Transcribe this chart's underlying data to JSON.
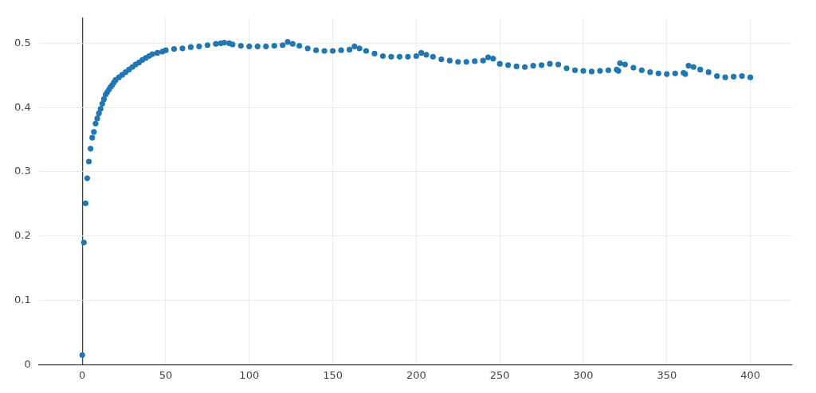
{
  "chart_data": {
    "type": "scatter",
    "marker": "circle",
    "grid": true,
    "legend": false,
    "xlim": [
      -26,
      425
    ],
    "ylim": [
      0,
      0.54
    ],
    "xticks": [
      0,
      50,
      100,
      150,
      200,
      250,
      300,
      350,
      400
    ],
    "yticks": [
      0,
      0.1,
      0.2,
      0.3,
      0.4,
      0.5
    ],
    "series": [
      {
        "color": "#1f77b4",
        "x": [
          0,
          1,
          2,
          3,
          4,
          5,
          6,
          7,
          8,
          9,
          10,
          11,
          12,
          13,
          14,
          15,
          16,
          17,
          18,
          19,
          20,
          22,
          24,
          26,
          28,
          30,
          32,
          34,
          36,
          38,
          40,
          42,
          45,
          48,
          50,
          55,
          60,
          65,
          70,
          75,
          80,
          83,
          85,
          88,
          90,
          95,
          100,
          105,
          110,
          115,
          120,
          123,
          126,
          130,
          135,
          140,
          145,
          150,
          155,
          160,
          163,
          166,
          170,
          175,
          180,
          185,
          190,
          195,
          200,
          203,
          206,
          210,
          215,
          220,
          225,
          230,
          235,
          240,
          243,
          246,
          250,
          255,
          260,
          265,
          270,
          275,
          280,
          285,
          290,
          295,
          300,
          305,
          310,
          315,
          320,
          321,
          322,
          325,
          330,
          335,
          340,
          345,
          350,
          355,
          360,
          361,
          363,
          366,
          370,
          375,
          380,
          385,
          390,
          395,
          400
        ],
        "values": [
          0.015,
          0.19,
          0.251,
          0.29,
          0.316,
          0.336,
          0.353,
          0.362,
          0.375,
          0.383,
          0.391,
          0.398,
          0.406,
          0.413,
          0.42,
          0.424,
          0.428,
          0.432,
          0.435,
          0.439,
          0.443,
          0.447,
          0.451,
          0.455,
          0.459,
          0.463,
          0.467,
          0.47,
          0.474,
          0.477,
          0.48,
          0.483,
          0.485,
          0.487,
          0.489,
          0.491,
          0.492,
          0.494,
          0.495,
          0.497,
          0.499,
          0.5,
          0.501,
          0.5,
          0.498,
          0.496,
          0.495,
          0.495,
          0.495,
          0.496,
          0.497,
          0.502,
          0.499,
          0.496,
          0.492,
          0.489,
          0.488,
          0.488,
          0.489,
          0.49,
          0.495,
          0.492,
          0.488,
          0.484,
          0.48,
          0.479,
          0.479,
          0.479,
          0.48,
          0.485,
          0.482,
          0.479,
          0.475,
          0.473,
          0.471,
          0.471,
          0.472,
          0.473,
          0.478,
          0.476,
          0.468,
          0.466,
          0.464,
          0.463,
          0.465,
          0.466,
          0.468,
          0.467,
          0.461,
          0.458,
          0.457,
          0.456,
          0.457,
          0.458,
          0.459,
          0.457,
          0.469,
          0.467,
          0.462,
          0.458,
          0.455,
          0.453,
          0.452,
          0.453,
          0.454,
          0.452,
          0.465,
          0.463,
          0.459,
          0.455,
          0.449,
          0.447,
          0.448,
          0.449,
          0.447
        ]
      }
    ]
  }
}
